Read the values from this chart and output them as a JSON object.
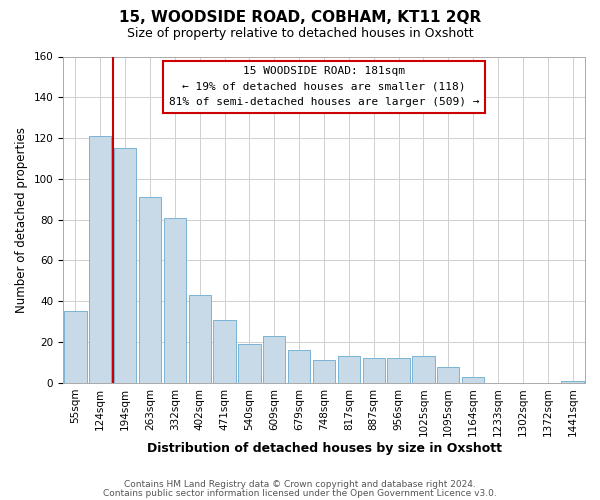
{
  "title": "15, WOODSIDE ROAD, COBHAM, KT11 2QR",
  "subtitle": "Size of property relative to detached houses in Oxshott",
  "xlabel": "Distribution of detached houses by size in Oxshott",
  "ylabel": "Number of detached properties",
  "footer_line1": "Contains HM Land Registry data © Crown copyright and database right 2024.",
  "footer_line2": "Contains public sector information licensed under the Open Government Licence v3.0.",
  "categories": [
    "55sqm",
    "124sqm",
    "194sqm",
    "263sqm",
    "332sqm",
    "402sqm",
    "471sqm",
    "540sqm",
    "609sqm",
    "679sqm",
    "748sqm",
    "817sqm",
    "887sqm",
    "956sqm",
    "1025sqm",
    "1095sqm",
    "1164sqm",
    "1233sqm",
    "1302sqm",
    "1372sqm",
    "1441sqm"
  ],
  "values": [
    35,
    121,
    115,
    91,
    81,
    43,
    31,
    19,
    23,
    16,
    11,
    13,
    12,
    12,
    13,
    8,
    3,
    0,
    0,
    0,
    1
  ],
  "bar_color": "#c8d9e8",
  "bar_edge_color": "#7ab4d4",
  "vline_color": "#cc0000",
  "vline_x_index": 1,
  "annotation_box_text": "15 WOODSIDE ROAD: 181sqm\n← 19% of detached houses are smaller (118)\n81% of semi-detached houses are larger (509) →",
  "ylim": [
    0,
    160
  ],
  "background_color": "#ffffff",
  "grid_color": "#d0d0d0",
  "title_fontsize": 11,
  "subtitle_fontsize": 9,
  "ylabel_fontsize": 8.5,
  "xlabel_fontsize": 9,
  "tick_fontsize": 7.5,
  "footer_fontsize": 6.5
}
